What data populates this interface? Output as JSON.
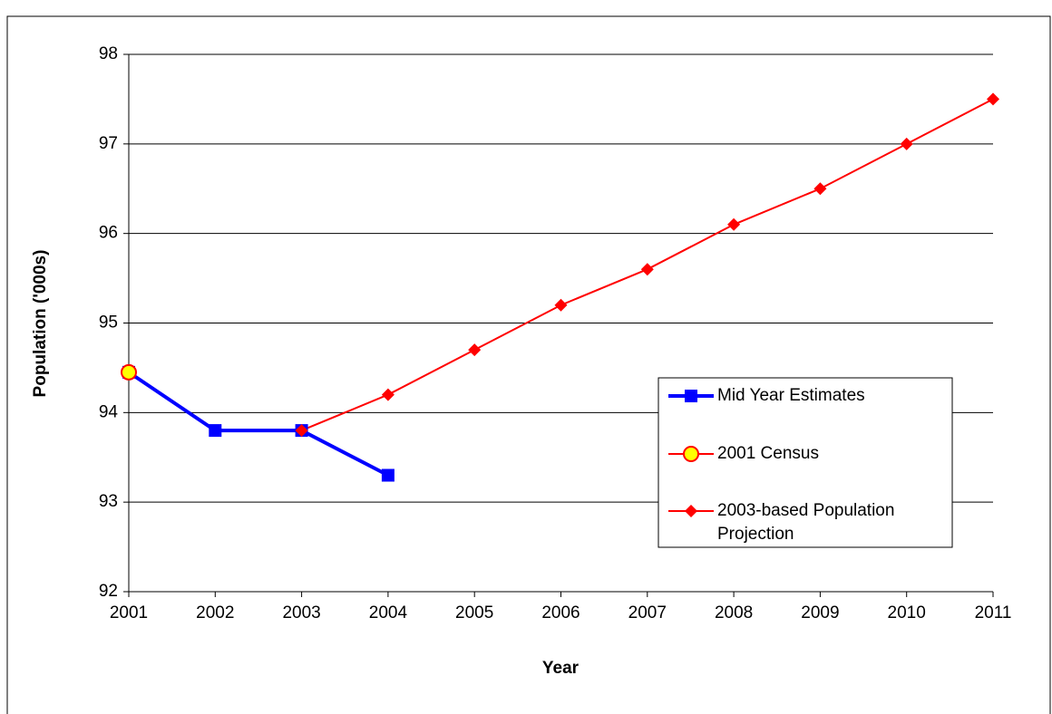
{
  "chart_data": {
    "type": "line",
    "x_label": "Year",
    "y_label": "Population ('000s)",
    "categories": [
      "2001",
      "2002",
      "2003",
      "2004",
      "2005",
      "2006",
      "2007",
      "2008",
      "2009",
      "2010",
      "2011"
    ],
    "series": [
      {
        "name": "Mid Year Estimates",
        "color": "#0000ff",
        "marker": "square",
        "values": [
          94.45,
          93.8,
          93.8,
          93.3,
          null,
          null,
          null,
          null,
          null,
          null,
          null
        ]
      },
      {
        "name": "2001 Census",
        "color": "#ff0000",
        "marker": "circle",
        "values": [
          94.45,
          null,
          null,
          null,
          null,
          null,
          null,
          null,
          null,
          null,
          null
        ]
      },
      {
        "name": "2003-based Population Projection",
        "color": "#ff0000",
        "marker": "diamond",
        "values": [
          null,
          null,
          93.8,
          94.2,
          94.7,
          95.2,
          95.6,
          96.1,
          96.5,
          97.0,
          97.5
        ]
      }
    ],
    "ylim": [
      92,
      98
    ],
    "yticks": [
      92,
      93,
      94,
      95,
      96,
      97,
      98
    ],
    "grid": true,
    "legend": "right"
  }
}
